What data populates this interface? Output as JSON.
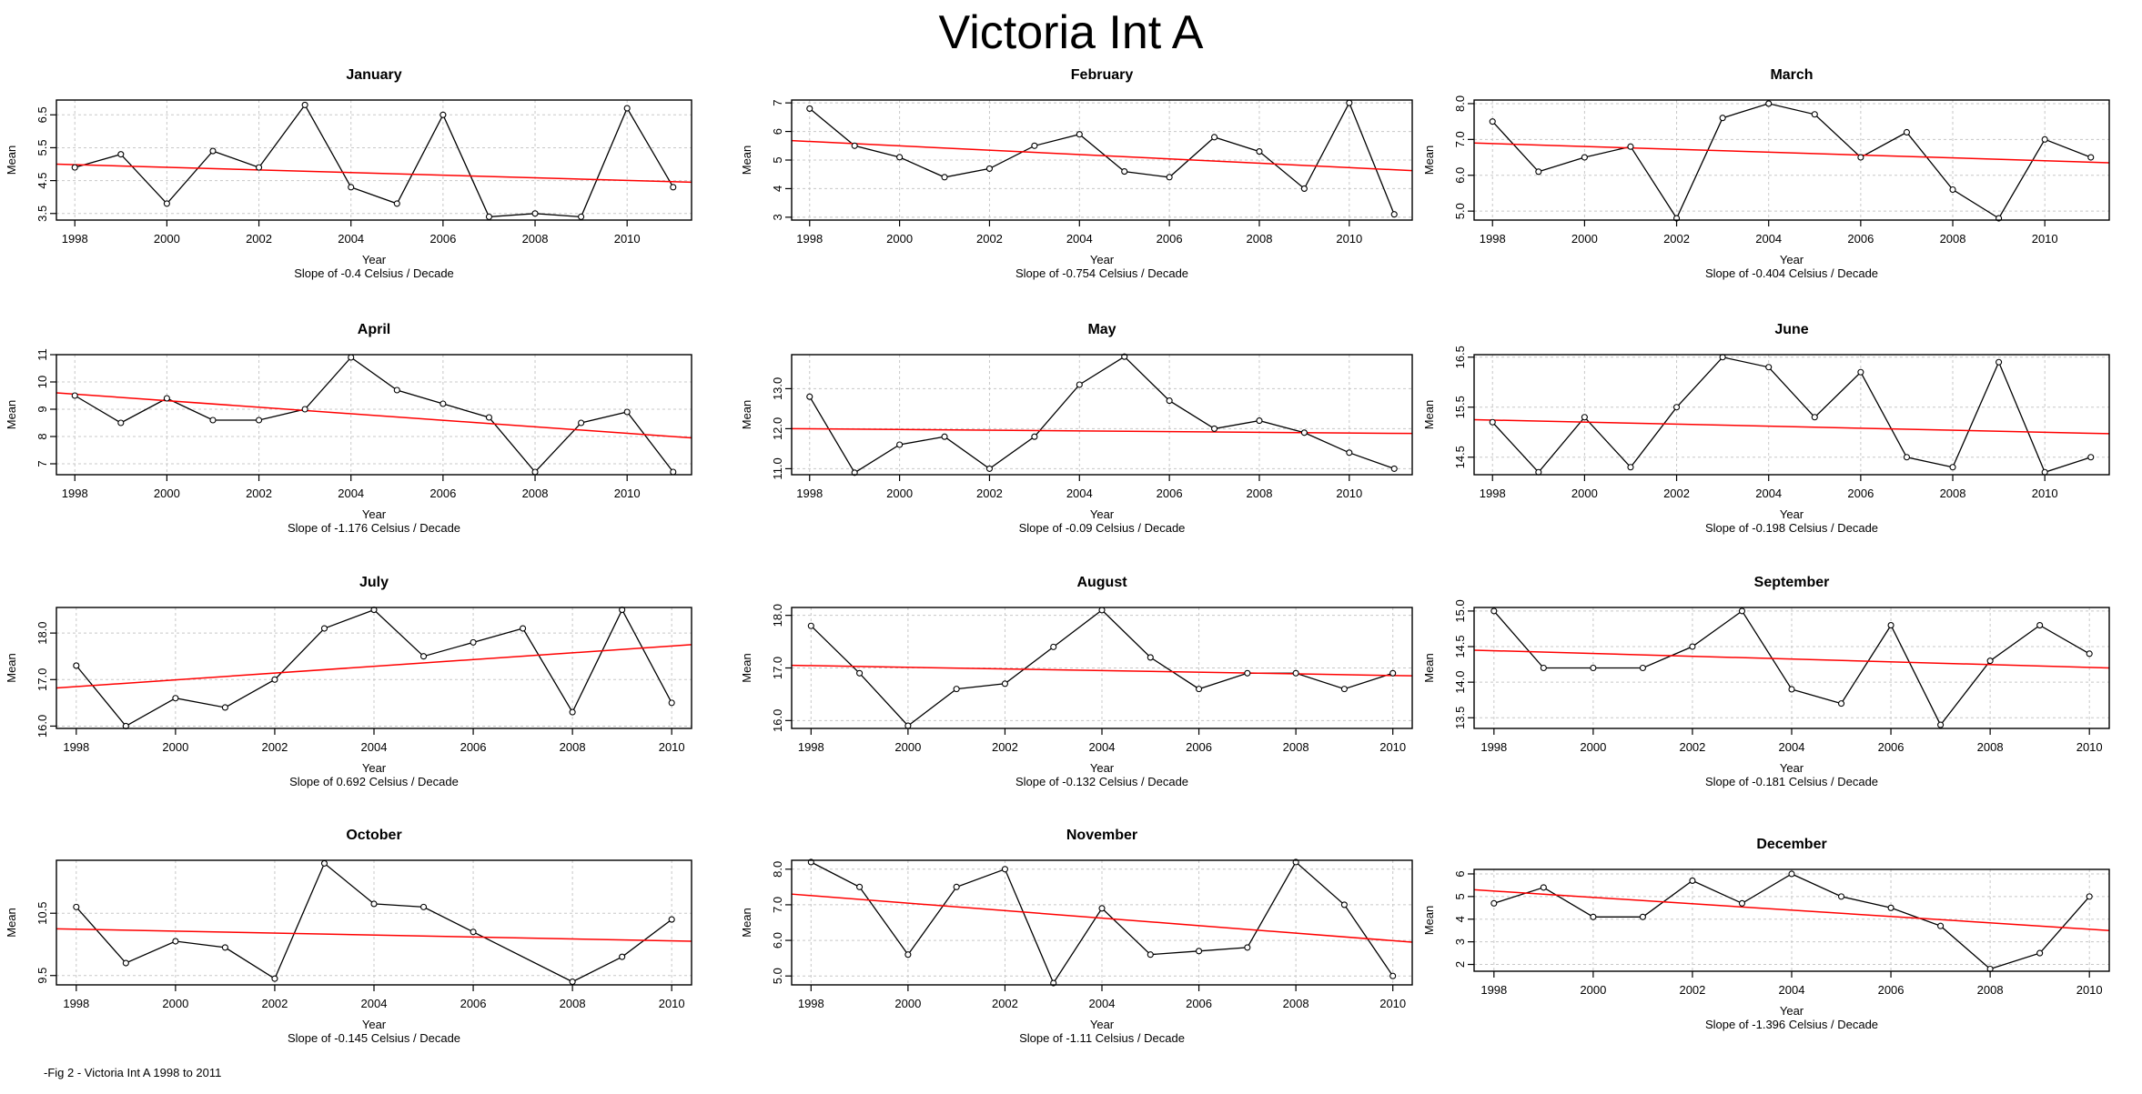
{
  "title": "Victoria Int A",
  "caption": "-Fig 2 - Victoria Int A 1998 to 2011",
  "colors": {
    "series": "#000000",
    "trend": "#ff0000",
    "grid": "#c8c8c8"
  },
  "chart_data": [
    {
      "type": "line",
      "title": "January",
      "xlabel": "Year",
      "ylabel": "Mean",
      "slope_label": "Slope of -0.4  Celsius / Decade",
      "x": [
        1998,
        1999,
        2000,
        2001,
        2002,
        2003,
        2004,
        2005,
        2006,
        2007,
        2008,
        2009,
        2010,
        2011
      ],
      "values": [
        4.9,
        5.3,
        3.8,
        5.4,
        4.9,
        6.8,
        4.3,
        3.8,
        6.5,
        3.4,
        3.5,
        3.4,
        6.7,
        4.3
      ],
      "xlim": [
        1997.6,
        2011.4
      ],
      "ylim": [
        3.3,
        6.95
      ],
      "yticks": [
        3.5,
        4.5,
        5.5,
        6.5
      ],
      "yticklabels": [
        "3.5",
        "4.5",
        "5.5",
        "6.5"
      ],
      "xticks": [
        1998,
        2000,
        2002,
        2004,
        2006,
        2008,
        2010
      ],
      "xticklabels": [
        "1998",
        "2000",
        "2002",
        "2004",
        "2006",
        "2008",
        "2010"
      ],
      "trend": [
        5.0,
        4.45
      ],
      "grid": true
    },
    {
      "type": "line",
      "title": "February",
      "xlabel": "Year",
      "ylabel": "Mean",
      "slope_label": "Slope of -0.754  Celsius / Decade",
      "x": [
        1998,
        1999,
        2000,
        2001,
        2002,
        2003,
        2004,
        2005,
        2006,
        2007,
        2008,
        2009,
        2010,
        2011
      ],
      "values": [
        6.8,
        5.5,
        5.1,
        4.4,
        4.7,
        5.5,
        5.9,
        4.6,
        4.4,
        5.8,
        5.3,
        4.0,
        7.0,
        3.1
      ],
      "xlim": [
        1997.6,
        2011.4
      ],
      "ylim": [
        2.9,
        7.1
      ],
      "yticks": [
        3,
        4,
        5,
        6,
        7
      ],
      "yticklabels": [
        "3",
        "4",
        "5",
        "6",
        "7"
      ],
      "xticks": [
        1998,
        2000,
        2002,
        2004,
        2006,
        2008,
        2010
      ],
      "xticklabels": [
        "1998",
        "2000",
        "2002",
        "2004",
        "2006",
        "2008",
        "2010"
      ],
      "trend": [
        5.68,
        4.63
      ],
      "grid": true
    },
    {
      "type": "line",
      "title": "March",
      "xlabel": "Year",
      "ylabel": "Mean",
      "slope_label": "Slope of -0.404  Celsius / Decade",
      "x": [
        1998,
        1999,
        2000,
        2001,
        2002,
        2003,
        2004,
        2005,
        2006,
        2007,
        2008,
        2009,
        2010,
        2011
      ],
      "values": [
        7.5,
        6.1,
        6.5,
        6.8,
        4.8,
        7.6,
        8.0,
        7.7,
        6.5,
        7.2,
        5.6,
        4.8,
        7.0,
        6.5
      ],
      "xlim": [
        1997.6,
        2011.4
      ],
      "ylim": [
        4.75,
        8.1
      ],
      "yticks": [
        5.0,
        6.0,
        7.0,
        8.0
      ],
      "yticklabels": [
        "5.0",
        "6.0",
        "7.0",
        "8.0"
      ],
      "xticks": [
        1998,
        2000,
        2002,
        2004,
        2006,
        2008,
        2010
      ],
      "xticklabels": [
        "1998",
        "2000",
        "2002",
        "2004",
        "2006",
        "2008",
        "2010"
      ],
      "trend": [
        6.9,
        6.35
      ],
      "grid": true
    },
    {
      "type": "line",
      "title": "April",
      "xlabel": "Year",
      "ylabel": "Mean",
      "slope_label": "Slope of -1.176  Celsius / Decade",
      "x": [
        1998,
        1999,
        2000,
        2001,
        2002,
        2003,
        2004,
        2005,
        2006,
        2007,
        2008,
        2009,
        2010,
        2011
      ],
      "values": [
        9.5,
        8.5,
        9.4,
        8.6,
        8.6,
        9.0,
        10.9,
        9.7,
        9.2,
        8.7,
        6.7,
        8.5,
        8.9,
        6.7
      ],
      "xlim": [
        1997.6,
        2011.4
      ],
      "ylim": [
        6.6,
        11.0
      ],
      "yticks": [
        7,
        8,
        9,
        10,
        11
      ],
      "yticklabels": [
        "7",
        "8",
        "9",
        "10",
        "11"
      ],
      "xticks": [
        1998,
        2000,
        2002,
        2004,
        2006,
        2008,
        2010
      ],
      "xticklabels": [
        "1998",
        "2000",
        "2002",
        "2004",
        "2006",
        "2008",
        "2010"
      ],
      "trend": [
        9.6,
        7.95
      ],
      "grid": true
    },
    {
      "type": "line",
      "title": "May",
      "xlabel": "Year",
      "ylabel": "Mean",
      "slope_label": "Slope of -0.09  Celsius / Decade",
      "x": [
        1998,
        1999,
        2000,
        2001,
        2002,
        2003,
        2004,
        2005,
        2006,
        2007,
        2008,
        2009,
        2010,
        2011
      ],
      "values": [
        12.8,
        10.9,
        11.6,
        11.8,
        11.0,
        11.8,
        13.1,
        13.8,
        12.7,
        12.0,
        12.2,
        11.9,
        11.4,
        11.0
      ],
      "xlim": [
        1997.6,
        2011.4
      ],
      "ylim": [
        10.85,
        13.85
      ],
      "yticks": [
        11.0,
        12.0,
        13.0
      ],
      "yticklabels": [
        "11.0",
        "12.0",
        "13.0"
      ],
      "xticks": [
        1998,
        2000,
        2002,
        2004,
        2006,
        2008,
        2010
      ],
      "xticklabels": [
        "1998",
        "2000",
        "2002",
        "2004",
        "2006",
        "2008",
        "2010"
      ],
      "trend": [
        12.0,
        11.88
      ],
      "grid": true
    },
    {
      "type": "line",
      "title": "June",
      "xlabel": "Year",
      "ylabel": "Mean",
      "slope_label": "Slope of -0.198  Celsius / Decade",
      "x": [
        1998,
        1999,
        2000,
        2001,
        2002,
        2003,
        2004,
        2005,
        2006,
        2007,
        2008,
        2009,
        2010,
        2011
      ],
      "values": [
        15.2,
        14.2,
        15.3,
        14.3,
        15.5,
        16.5,
        16.3,
        15.3,
        16.2,
        14.5,
        14.3,
        16.4,
        14.2,
        14.5
      ],
      "xlim": [
        1997.6,
        2011.4
      ],
      "ylim": [
        14.15,
        16.55
      ],
      "yticks": [
        14.5,
        15.5,
        16.5
      ],
      "yticklabels": [
        "14.5",
        "15.5",
        "16.5"
      ],
      "xticks": [
        1998,
        2000,
        2002,
        2004,
        2006,
        2008,
        2010
      ],
      "xticklabels": [
        "1998",
        "2000",
        "2002",
        "2004",
        "2006",
        "2008",
        "2010"
      ],
      "trend": [
        15.25,
        14.97
      ],
      "grid": true
    },
    {
      "type": "line",
      "title": "July",
      "xlabel": "Year",
      "ylabel": "Mean",
      "slope_label": "Slope of 0.692  Celsius / Decade",
      "x": [
        1998,
        1999,
        2000,
        2001,
        2002,
        2003,
        2004,
        2005,
        2006,
        2007,
        2008,
        2009,
        2010
      ],
      "values": [
        17.3,
        16.0,
        16.6,
        16.4,
        17.0,
        18.1,
        18.5,
        17.5,
        17.8,
        18.1,
        16.3,
        18.5,
        16.5
      ],
      "xlim": [
        1997.6,
        2010.4
      ],
      "ylim": [
        15.95,
        18.55
      ],
      "yticks": [
        16.0,
        17.0,
        18.0
      ],
      "yticklabels": [
        "16.0",
        "17.0",
        "18.0"
      ],
      "xticks": [
        1998,
        2000,
        2002,
        2004,
        2006,
        2008,
        2010
      ],
      "xticklabels": [
        "1998",
        "2000",
        "2002",
        "2004",
        "2006",
        "2008",
        "2010"
      ],
      "trend": [
        16.82,
        17.75
      ],
      "grid": true
    },
    {
      "type": "line",
      "title": "August",
      "xlabel": "Year",
      "ylabel": "Mean",
      "slope_label": "Slope of -0.132  Celsius / Decade",
      "x": [
        1998,
        1999,
        2000,
        2001,
        2002,
        2003,
        2004,
        2005,
        2006,
        2007,
        2008,
        2009,
        2010
      ],
      "values": [
        17.8,
        16.9,
        15.9,
        16.6,
        16.7,
        17.4,
        18.1,
        17.2,
        16.6,
        16.9,
        16.9,
        16.6,
        16.9
      ],
      "xlim": [
        1997.6,
        2010.4
      ],
      "ylim": [
        15.85,
        18.15
      ],
      "yticks": [
        16.0,
        17.0,
        18.0
      ],
      "yticklabels": [
        "16.0",
        "17.0",
        "18.0"
      ],
      "xticks": [
        1998,
        2000,
        2002,
        2004,
        2006,
        2008,
        2010
      ],
      "xticklabels": [
        "1998",
        "2000",
        "2002",
        "2004",
        "2006",
        "2008",
        "2010"
      ],
      "trend": [
        17.05,
        16.85
      ],
      "grid": true
    },
    {
      "type": "line",
      "title": "September",
      "xlabel": "Year",
      "ylabel": "Mean",
      "slope_label": "Slope of -0.181  Celsius / Decade",
      "x": [
        1998,
        1999,
        2000,
        2001,
        2002,
        2003,
        2004,
        2005,
        2006,
        2007,
        2008,
        2009,
        2010
      ],
      "values": [
        15.0,
        14.2,
        14.2,
        14.2,
        14.5,
        15.0,
        13.9,
        13.7,
        14.8,
        13.4,
        14.3,
        14.8,
        14.4
      ],
      "xlim": [
        1997.6,
        2010.4
      ],
      "ylim": [
        13.35,
        15.05
      ],
      "yticks": [
        13.5,
        14.0,
        14.5,
        15.0
      ],
      "yticklabels": [
        "13.5",
        "14.0",
        "14.5",
        "15.0"
      ],
      "xticks": [
        1998,
        2000,
        2002,
        2004,
        2006,
        2008,
        2010
      ],
      "xticklabels": [
        "1998",
        "2000",
        "2002",
        "2004",
        "2006",
        "2008",
        "2010"
      ],
      "trend": [
        14.45,
        14.2
      ],
      "grid": true
    },
    {
      "type": "line",
      "title": "October",
      "xlabel": "Year",
      "ylabel": "Mean",
      "slope_label": "Slope of -0.145  Celsius / Decade",
      "x": [
        1998,
        1999,
        2000,
        2001,
        2002,
        2003,
        2004,
        2005,
        2006,
        2007,
        2008,
        2009,
        2010
      ],
      "values": [
        10.6,
        9.7,
        10.05,
        9.95,
        9.45,
        11.3,
        10.65,
        10.6,
        10.2,
        null,
        9.4,
        9.8,
        10.4
      ],
      "xlim": [
        1997.6,
        2010.4
      ],
      "ylim": [
        9.35,
        11.35
      ],
      "yticks": [
        9.5,
        10.5
      ],
      "yticklabels": [
        "9.5",
        "10.5"
      ],
      "xticks": [
        1998,
        2000,
        2002,
        2004,
        2006,
        2008,
        2010
      ],
      "xticklabels": [
        "1998",
        "2000",
        "2002",
        "2004",
        "2006",
        "2008",
        "2010"
      ],
      "trend": [
        10.25,
        10.05
      ],
      "grid": true
    },
    {
      "type": "line",
      "title": "November",
      "xlabel": "Year",
      "ylabel": "Mean",
      "slope_label": "Slope of -1.11  Celsius / Decade",
      "x": [
        1998,
        1999,
        2000,
        2001,
        2002,
        2003,
        2004,
        2005,
        2006,
        2007,
        2008,
        2009,
        2010
      ],
      "values": [
        8.2,
        7.5,
        5.6,
        7.5,
        8.0,
        4.8,
        6.9,
        5.6,
        5.7,
        5.8,
        8.2,
        7.0,
        5.0
      ],
      "xlim": [
        1997.6,
        2010.4
      ],
      "ylim": [
        4.75,
        8.25
      ],
      "yticks": [
        5.0,
        6.0,
        7.0,
        8.0
      ],
      "yticklabels": [
        "5.0",
        "6.0",
        "7.0",
        "8.0"
      ],
      "xticks": [
        1998,
        2000,
        2002,
        2004,
        2006,
        2008,
        2010
      ],
      "xticklabels": [
        "1998",
        "2000",
        "2002",
        "2004",
        "2006",
        "2008",
        "2010"
      ],
      "trend": [
        7.3,
        5.95
      ],
      "grid": true
    },
    {
      "type": "line",
      "title": "December",
      "xlabel": "Year",
      "ylabel": "Mean",
      "slope_label": "Slope of -1.396  Celsius / Decade",
      "x": [
        1998,
        1999,
        2000,
        2001,
        2002,
        2003,
        2004,
        2005,
        2006,
        2007,
        2008,
        2009,
        2010
      ],
      "values": [
        4.7,
        5.4,
        4.1,
        4.1,
        5.7,
        4.7,
        6.0,
        5.0,
        4.5,
        3.7,
        1.8,
        2.5,
        5.0
      ],
      "xlim": [
        1997.6,
        2010.4
      ],
      "ylim": [
        1.7,
        6.2
      ],
      "yticks": [
        2,
        3,
        4,
        5,
        6
      ],
      "yticklabels": [
        "2",
        "3",
        "4",
        "5",
        "6"
      ],
      "xticks": [
        1998,
        2000,
        2002,
        2004,
        2006,
        2008,
        2010
      ],
      "xticklabels": [
        "1998",
        "2000",
        "2002",
        "2004",
        "2006",
        "2008",
        "2010"
      ],
      "trend": [
        5.3,
        3.5
      ],
      "grid": true
    }
  ]
}
